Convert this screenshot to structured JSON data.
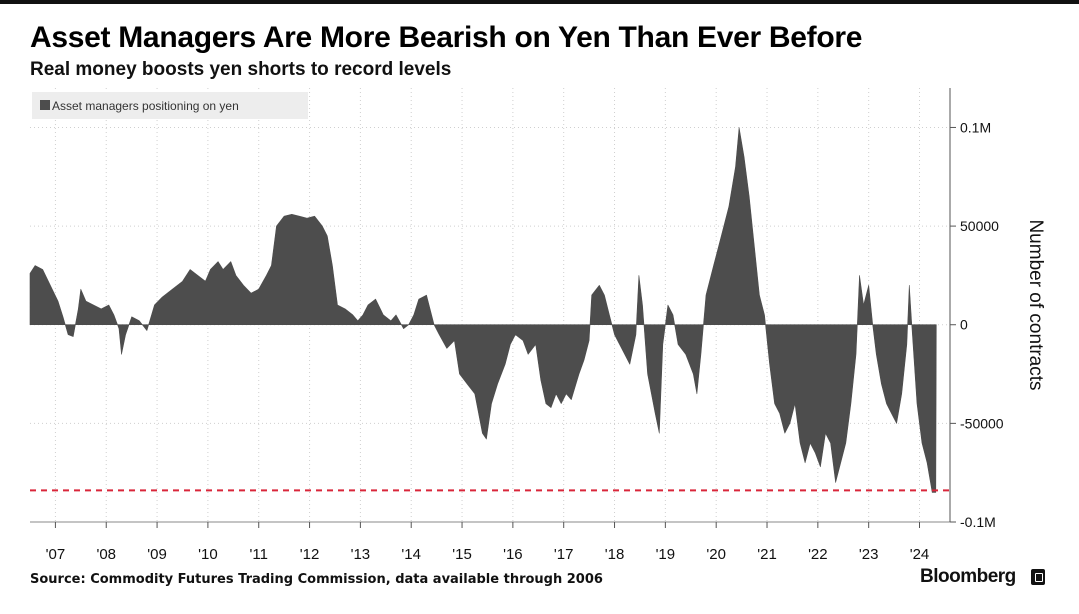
{
  "header": {
    "title": "Asset Managers Are More Bearish on Yen Than Ever Before",
    "subtitle": "Real money boosts yen shorts to record levels"
  },
  "footer": {
    "source": "Source: Commodity Futures Trading Commission, data available through 2006",
    "brand": "Bloomberg"
  },
  "colors": {
    "area": "#4d4d4d",
    "reference_line": "#d9263a",
    "legend_bg": "#ededed"
  },
  "chart_data": {
    "type": "area",
    "title": "Asset Managers Are More Bearish on Yen Than Ever Before",
    "subtitle": "Real money boosts yen shorts to record levels",
    "ylabel": "Number of contracts",
    "xlabel": "",
    "ylim": [
      -100000,
      120000
    ],
    "xlim": [
      2006.5,
      2024.6
    ],
    "grid": true,
    "legend_position": "top-left",
    "x_tick_labels": [
      "'07",
      "'08",
      "'09",
      "'10",
      "'11",
      "'12",
      "'13",
      "'14",
      "'15",
      "'16",
      "'17",
      "'18",
      "'19",
      "'20",
      "'21",
      "'22",
      "'23",
      "'24"
    ],
    "x_tick_values": [
      2007,
      2008,
      2009,
      2010,
      2011,
      2012,
      2013,
      2014,
      2015,
      2016,
      2017,
      2018,
      2019,
      2020,
      2021,
      2022,
      2023,
      2024
    ],
    "y_tick_labels": [
      "0.1M",
      "50000",
      "0",
      "-50000",
      "-0.1M"
    ],
    "y_tick_values": [
      100000,
      50000,
      0,
      -50000,
      -100000
    ],
    "reference_line": {
      "y": -84000,
      "style": "dashed"
    },
    "series": [
      {
        "name": "Asset managers positioning on yen",
        "points": [
          [
            2006.5,
            26000
          ],
          [
            2006.6,
            30000
          ],
          [
            2006.75,
            28000
          ],
          [
            2006.9,
            20000
          ],
          [
            2007.05,
            12000
          ],
          [
            2007.15,
            4000
          ],
          [
            2007.25,
            -5000
          ],
          [
            2007.35,
            -6000
          ],
          [
            2007.45,
            8000
          ],
          [
            2007.5,
            18000
          ],
          [
            2007.6,
            12000
          ],
          [
            2007.75,
            10000
          ],
          [
            2007.9,
            8000
          ],
          [
            2008.05,
            10000
          ],
          [
            2008.15,
            5000
          ],
          [
            2008.25,
            -2000
          ],
          [
            2008.3,
            -15000
          ],
          [
            2008.38,
            -5000
          ],
          [
            2008.5,
            4000
          ],
          [
            2008.65,
            2000
          ],
          [
            2008.8,
            -3000
          ],
          [
            2008.95,
            10000
          ],
          [
            2009.1,
            14000
          ],
          [
            2009.3,
            18000
          ],
          [
            2009.5,
            22000
          ],
          [
            2009.65,
            28000
          ],
          [
            2009.8,
            25000
          ],
          [
            2009.95,
            22000
          ],
          [
            2010.05,
            28000
          ],
          [
            2010.2,
            32000
          ],
          [
            2010.3,
            28000
          ],
          [
            2010.45,
            32000
          ],
          [
            2010.55,
            25000
          ],
          [
            2010.7,
            20000
          ],
          [
            2010.85,
            16000
          ],
          [
            2011.0,
            18000
          ],
          [
            2011.15,
            25000
          ],
          [
            2011.25,
            30000
          ],
          [
            2011.35,
            50000
          ],
          [
            2011.5,
            55000
          ],
          [
            2011.65,
            56000
          ],
          [
            2011.8,
            55000
          ],
          [
            2011.95,
            54000
          ],
          [
            2012.1,
            55000
          ],
          [
            2012.25,
            50000
          ],
          [
            2012.35,
            45000
          ],
          [
            2012.45,
            30000
          ],
          [
            2012.55,
            10000
          ],
          [
            2012.7,
            8000
          ],
          [
            2012.85,
            5000
          ],
          [
            2012.95,
            2000
          ],
          [
            2013.05,
            5000
          ],
          [
            2013.15,
            10000
          ],
          [
            2013.3,
            13000
          ],
          [
            2013.45,
            5000
          ],
          [
            2013.6,
            2000
          ],
          [
            2013.7,
            5000
          ],
          [
            2013.85,
            -2000
          ],
          [
            2013.95,
            0
          ],
          [
            2014.05,
            5000
          ],
          [
            2014.15,
            13000
          ],
          [
            2014.3,
            15000
          ],
          [
            2014.45,
            0
          ],
          [
            2014.55,
            -5000
          ],
          [
            2014.7,
            -12000
          ],
          [
            2014.85,
            -8000
          ],
          [
            2014.95,
            -25000
          ],
          [
            2015.1,
            -30000
          ],
          [
            2015.25,
            -35000
          ],
          [
            2015.4,
            -55000
          ],
          [
            2015.48,
            -58000
          ],
          [
            2015.58,
            -40000
          ],
          [
            2015.7,
            -30000
          ],
          [
            2015.85,
            -20000
          ],
          [
            2015.95,
            -10000
          ],
          [
            2016.05,
            -5000
          ],
          [
            2016.2,
            -8000
          ],
          [
            2016.3,
            -15000
          ],
          [
            2016.45,
            -10000
          ],
          [
            2016.55,
            -28000
          ],
          [
            2016.65,
            -40000
          ],
          [
            2016.75,
            -42000
          ],
          [
            2016.85,
            -35000
          ],
          [
            2016.95,
            -40000
          ],
          [
            2017.05,
            -35000
          ],
          [
            2017.15,
            -38000
          ],
          [
            2017.3,
            -25000
          ],
          [
            2017.4,
            -18000
          ],
          [
            2017.5,
            -8000
          ],
          [
            2017.55,
            15000
          ],
          [
            2017.7,
            20000
          ],
          [
            2017.8,
            15000
          ],
          [
            2017.9,
            5000
          ],
          [
            2018.0,
            -5000
          ],
          [
            2018.1,
            -10000
          ],
          [
            2018.2,
            -15000
          ],
          [
            2018.3,
            -20000
          ],
          [
            2018.42,
            -5000
          ],
          [
            2018.48,
            25000
          ],
          [
            2018.55,
            10000
          ],
          [
            2018.65,
            -25000
          ],
          [
            2018.8,
            -45000
          ],
          [
            2018.88,
            -55000
          ],
          [
            2018.95,
            -10000
          ],
          [
            2019.05,
            10000
          ],
          [
            2019.15,
            5000
          ],
          [
            2019.25,
            -10000
          ],
          [
            2019.4,
            -15000
          ],
          [
            2019.55,
            -25000
          ],
          [
            2019.62,
            -35000
          ],
          [
            2019.7,
            -15000
          ],
          [
            2019.8,
            15000
          ],
          [
            2019.95,
            30000
          ],
          [
            2020.1,
            45000
          ],
          [
            2020.25,
            60000
          ],
          [
            2020.38,
            80000
          ],
          [
            2020.45,
            100000
          ],
          [
            2020.55,
            85000
          ],
          [
            2020.65,
            65000
          ],
          [
            2020.75,
            40000
          ],
          [
            2020.85,
            15000
          ],
          [
            2020.95,
            5000
          ],
          [
            2021.05,
            -20000
          ],
          [
            2021.15,
            -40000
          ],
          [
            2021.25,
            -45000
          ],
          [
            2021.35,
            -55000
          ],
          [
            2021.45,
            -50000
          ],
          [
            2021.55,
            -40000
          ],
          [
            2021.65,
            -60000
          ],
          [
            2021.75,
            -70000
          ],
          [
            2021.85,
            -60000
          ],
          [
            2021.95,
            -65000
          ],
          [
            2022.05,
            -72000
          ],
          [
            2022.15,
            -55000
          ],
          [
            2022.25,
            -60000
          ],
          [
            2022.35,
            -80000
          ],
          [
            2022.45,
            -70000
          ],
          [
            2022.55,
            -60000
          ],
          [
            2022.65,
            -40000
          ],
          [
            2022.75,
            -15000
          ],
          [
            2022.82,
            25000
          ],
          [
            2022.9,
            10000
          ],
          [
            2023.0,
            20000
          ],
          [
            2023.08,
            0
          ],
          [
            2023.15,
            -15000
          ],
          [
            2023.25,
            -30000
          ],
          [
            2023.35,
            -40000
          ],
          [
            2023.45,
            -45000
          ],
          [
            2023.55,
            -50000
          ],
          [
            2023.65,
            -35000
          ],
          [
            2023.75,
            -10000
          ],
          [
            2023.8,
            20000
          ],
          [
            2023.86,
            -5000
          ],
          [
            2023.95,
            -40000
          ],
          [
            2024.05,
            -60000
          ],
          [
            2024.15,
            -70000
          ],
          [
            2024.25,
            -85000
          ],
          [
            2024.32,
            -85000
          ],
          [
            2024.33,
            0
          ]
        ]
      }
    ]
  }
}
